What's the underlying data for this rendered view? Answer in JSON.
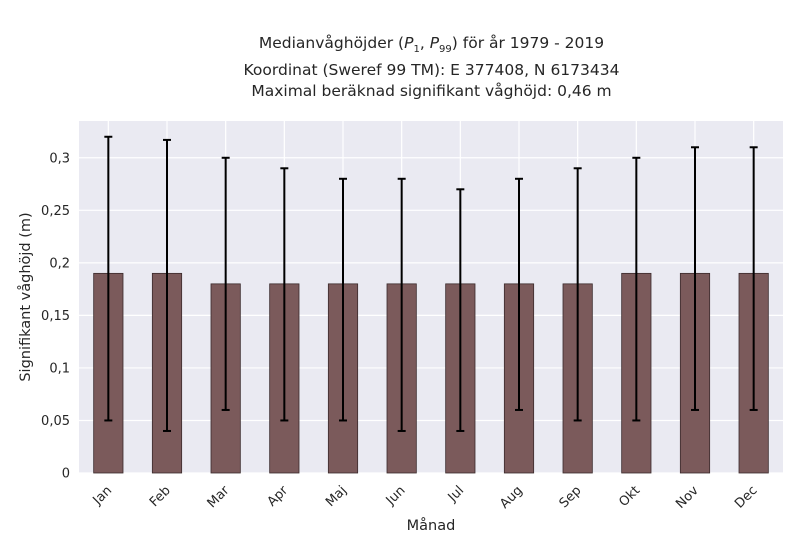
{
  "chart_data": {
    "type": "bar",
    "title_lines": [
      "Medianvåghöjder (P1, P99) för år 1979 - 2019",
      "Koordinat (Sweref 99 TM): E 377408, N 6173434",
      "Maximal beräknad signifikant våghöjd: 0,46 m"
    ],
    "title_parts": {
      "prefix": "Medianvåghöjder (",
      "p1_base": "P",
      "p1_sub": "1",
      "sep": ", ",
      "p99_base": "P",
      "p99_sub": "99",
      "suffix": ") för år 1979 - 2019"
    },
    "xlabel": "Månad",
    "ylabel": "Signifikant våghöjd (m)",
    "ylim": [
      0,
      0.335
    ],
    "yticks": [
      0,
      0.05,
      0.1,
      0.15,
      0.2,
      0.25,
      0.3
    ],
    "ytick_labels": [
      "0",
      "0,05",
      "0,1",
      "0,15",
      "0,2",
      "0,25",
      "0,3"
    ],
    "categories": [
      "Jan",
      "Feb",
      "Mar",
      "Apr",
      "Maj",
      "Jun",
      "Jul",
      "Aug",
      "Sep",
      "Okt",
      "Nov",
      "Dec"
    ],
    "values": [
      0.19,
      0.19,
      0.18,
      0.18,
      0.18,
      0.18,
      0.18,
      0.18,
      0.18,
      0.19,
      0.19,
      0.19
    ],
    "p1": [
      0.05,
      0.04,
      0.06,
      0.05,
      0.05,
      0.04,
      0.04,
      0.06,
      0.05,
      0.05,
      0.06,
      0.06
    ],
    "p99": [
      0.32,
      0.317,
      0.3,
      0.29,
      0.28,
      0.28,
      0.27,
      0.28,
      0.29,
      0.3,
      0.31,
      0.31
    ],
    "grid": true,
    "colors": {
      "bar": "#7b5a5b",
      "bar_edge": "#3a2a2b",
      "errorbar": "#000000",
      "plot_bg": "#eaeaf2",
      "grid": "#ffffff"
    }
  }
}
